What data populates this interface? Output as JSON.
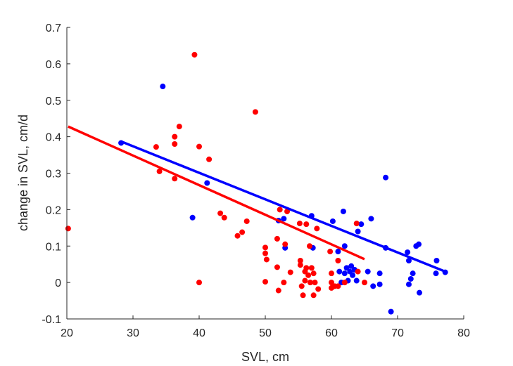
{
  "chart_data": {
    "type": "scatter",
    "title": "",
    "xlabel": "SVL, cm",
    "ylabel": "change in SVL, cm/d",
    "xlim": [
      20,
      80
    ],
    "ylim": [
      -0.1,
      0.7
    ],
    "xticks": [
      "20",
      "30",
      "40",
      "50",
      "60",
      "70",
      "80"
    ],
    "yticks": [
      "-0.1",
      "0",
      "0.1",
      "0.2",
      "0.3",
      "0.4",
      "0.5",
      "0.6",
      "0.7"
    ],
    "grid": false,
    "legend": "none",
    "series": [
      {
        "color": "#0000ff",
        "points": [
          [
            28.2,
            0.383
          ],
          [
            34.5,
            0.538
          ],
          [
            39.0,
            0.178
          ],
          [
            41.2,
            0.273
          ],
          [
            52.0,
            0.17
          ],
          [
            52.8,
            0.175
          ],
          [
            53.0,
            0.095
          ],
          [
            57.0,
            0.183
          ],
          [
            57.2,
            0.095
          ],
          [
            60.2,
            0.168
          ],
          [
            61.0,
            0.085
          ],
          [
            61.2,
            0.03
          ],
          [
            61.5,
            0.0
          ],
          [
            61.8,
            0.195
          ],
          [
            62.0,
            0.1
          ],
          [
            62.0,
            0.025
          ],
          [
            62.3,
            0.04
          ],
          [
            62.5,
            0.005
          ],
          [
            62.8,
            0.03
          ],
          [
            63.0,
            0.045
          ],
          [
            63.2,
            0.02
          ],
          [
            63.5,
            0.035
          ],
          [
            63.8,
            0.005
          ],
          [
            64.0,
            0.14
          ],
          [
            64.5,
            0.16
          ],
          [
            65.5,
            0.03
          ],
          [
            66.0,
            0.175
          ],
          [
            66.3,
            -0.01
          ],
          [
            67.3,
            0.025
          ],
          [
            67.3,
            -0.005
          ],
          [
            68.2,
            0.095
          ],
          [
            68.2,
            0.288
          ],
          [
            69.0,
            -0.08
          ],
          [
            71.5,
            0.083
          ],
          [
            71.7,
            0.06
          ],
          [
            71.7,
            -0.005
          ],
          [
            72.0,
            0.01
          ],
          [
            72.3,
            0.025
          ],
          [
            72.8,
            0.1
          ],
          [
            73.2,
            0.105
          ],
          [
            73.3,
            -0.028
          ],
          [
            75.8,
            0.025
          ],
          [
            75.9,
            0.06
          ],
          [
            77.2,
            0.028
          ]
        ],
        "fit": [
          [
            28.2,
            0.387
          ],
          [
            77.2,
            0.03
          ]
        ]
      },
      {
        "color": "#ff0000",
        "points": [
          [
            20.2,
            0.148
          ],
          [
            33.5,
            0.372
          ],
          [
            34.0,
            0.305
          ],
          [
            36.3,
            0.4
          ],
          [
            36.3,
            0.38
          ],
          [
            36.3,
            0.285
          ],
          [
            37.0,
            0.428
          ],
          [
            39.3,
            0.625
          ],
          [
            40.0,
            0.373
          ],
          [
            40.0,
            0.0
          ],
          [
            41.5,
            0.338
          ],
          [
            43.2,
            0.19
          ],
          [
            43.8,
            0.178
          ],
          [
            45.8,
            0.128
          ],
          [
            46.5,
            0.138
          ],
          [
            47.2,
            0.168
          ],
          [
            48.5,
            0.468
          ],
          [
            50.0,
            0.096
          ],
          [
            50.0,
            0.08
          ],
          [
            50.2,
            0.063
          ],
          [
            50.0,
            0.002
          ],
          [
            51.8,
            0.042
          ],
          [
            51.8,
            0.12
          ],
          [
            52.0,
            -0.022
          ],
          [
            52.2,
            0.2
          ],
          [
            52.8,
            0.0
          ],
          [
            53.0,
            0.105
          ],
          [
            53.3,
            0.195
          ],
          [
            53.8,
            0.028
          ],
          [
            55.2,
            0.162
          ],
          [
            55.3,
            0.06
          ],
          [
            55.3,
            0.048
          ],
          [
            55.5,
            -0.01
          ],
          [
            55.7,
            -0.035
          ],
          [
            56.0,
            0.03
          ],
          [
            56.0,
            0.005
          ],
          [
            56.2,
            0.16
          ],
          [
            56.2,
            0.04
          ],
          [
            56.5,
            0.02
          ],
          [
            56.7,
            0.1
          ],
          [
            56.8,
            0.0
          ],
          [
            57.0,
            0.04
          ],
          [
            57.3,
            0.025
          ],
          [
            57.3,
            -0.035
          ],
          [
            57.5,
            0.0
          ],
          [
            57.8,
            0.148
          ],
          [
            58.0,
            -0.018
          ],
          [
            59.8,
            0.085
          ],
          [
            60.0,
            0.025
          ],
          [
            60.0,
            0.0
          ],
          [
            60.0,
            -0.015
          ],
          [
            60.5,
            -0.01
          ],
          [
            61.0,
            0.06
          ],
          [
            61.0,
            -0.01
          ],
          [
            62.0,
            0.0
          ],
          [
            63.8,
            0.162
          ],
          [
            64.0,
            0.03
          ],
          [
            65.0,
            0.0
          ]
        ],
        "fit": [
          [
            20.2,
            0.428
          ],
          [
            65.0,
            0.064
          ]
        ]
      }
    ]
  }
}
